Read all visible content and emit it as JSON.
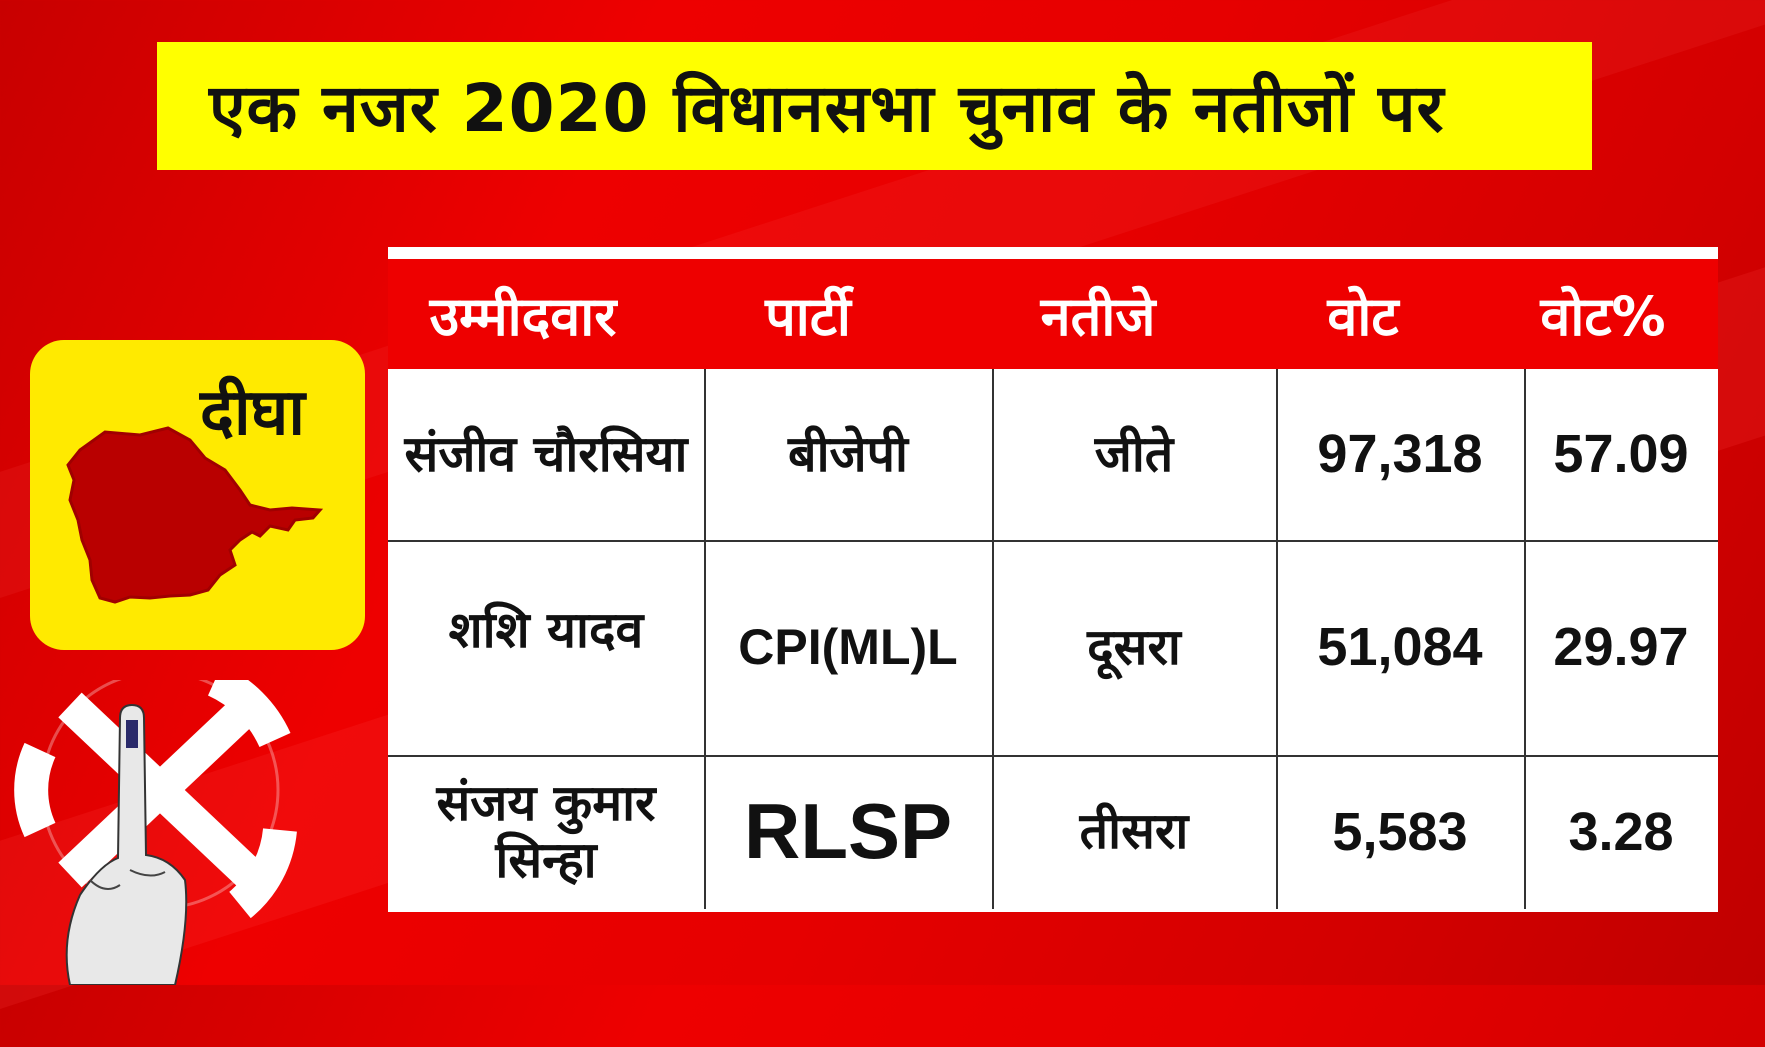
{
  "title": "एक नजर 2020 विधानसभा चुनाव के नतीजों पर",
  "constituency": "दीघा",
  "colors": {
    "background": "#e60000",
    "title_bar": "#ffff00",
    "header_row": "#ee0000",
    "badge": "#ffea00",
    "map_fill": "#b90000"
  },
  "table": {
    "headers": [
      "उम्मीदवार",
      "पार्टी",
      "नतीजे",
      "वोट",
      "वोट%"
    ],
    "rows": [
      {
        "candidate": "संजीव चौरसिया",
        "party": "बीजेपी",
        "result": "जीते",
        "votes": "97,318",
        "vote_pct": "57.09"
      },
      {
        "candidate": "शशि यादव",
        "party": "CPI(ML)L",
        "result": "दूसरा",
        "votes": "51,084",
        "vote_pct": "29.97"
      },
      {
        "candidate": "संजय कुमार सिन्हा",
        "party": "RLSP",
        "result": "तीसरा",
        "votes": "5,583",
        "vote_pct": "3.28"
      }
    ]
  },
  "icons": [
    "constituency-map-icon",
    "swastik-ballot-icon",
    "inked-finger-icon"
  ]
}
